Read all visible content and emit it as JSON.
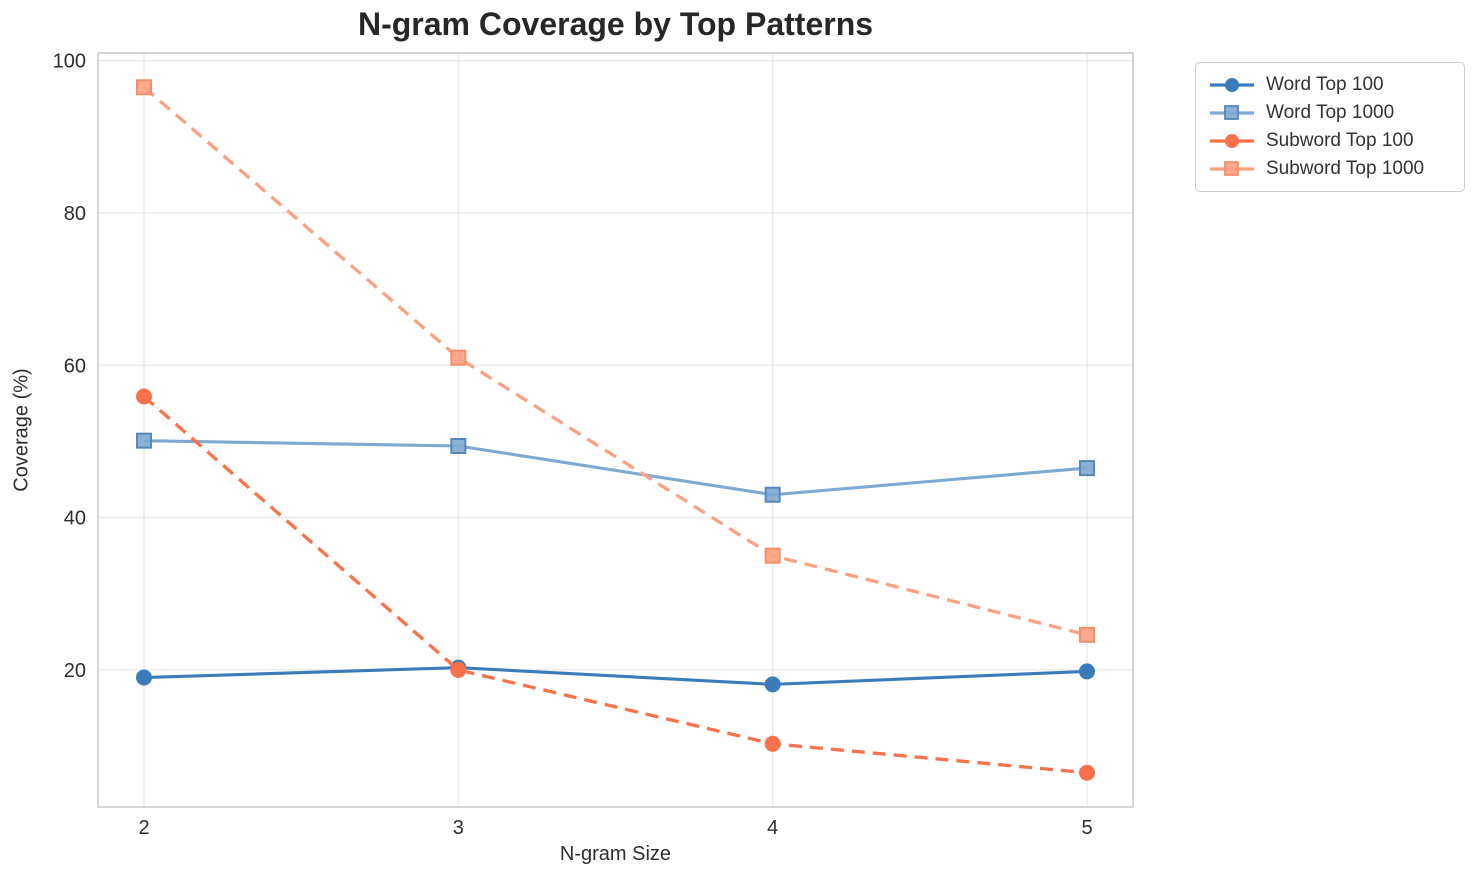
{
  "chart_data": {
    "type": "line",
    "title": "N-gram Coverage by Top Patterns",
    "xlabel": "N-gram Size",
    "ylabel": "Coverage (%)",
    "x": [
      2,
      3,
      4,
      5
    ],
    "xtick_labels": [
      "2",
      "3",
      "4",
      "5"
    ],
    "ytick_values": [
      20,
      40,
      60,
      80,
      100
    ],
    "ytick_labels": [
      "20",
      "40",
      "60",
      "80",
      "100"
    ],
    "ylim": [
      2,
      101
    ],
    "grid": true,
    "legend_position": "outside-upper-right",
    "series": [
      {
        "name": "Word Top 100",
        "values": [
          19.0,
          20.3,
          18.1,
          19.8
        ],
        "color": "#3b7cb8",
        "edge_color": "#34699c",
        "line_style": "solid",
        "marker": "circle"
      },
      {
        "name": "Word Top 1000",
        "values": [
          50.1,
          49.4,
          43.0,
          46.5
        ],
        "color": "#7fa9d1",
        "edge_color": "#5688bc",
        "line_style": "solid",
        "marker": "square"
      },
      {
        "name": "Subword Top 100",
        "values": [
          55.9,
          20.0,
          10.3,
          6.5
        ],
        "color": "#f9714a",
        "edge_color": "#ea5c33",
        "line_style": "dashed",
        "marker": "circle"
      },
      {
        "name": "Subword Top 1000",
        "values": [
          96.5,
          61.0,
          35.0,
          24.6
        ],
        "color": "#fba183",
        "edge_color": "#f88e67",
        "line_style": "dashed",
        "marker": "square"
      }
    ],
    "colors": {
      "background": "#ffffff",
      "grid": "#e8e8ea",
      "spine": "#cbcbcb",
      "tick_text": "#2e2e2e",
      "title_text": "#272727",
      "legend_border": "#cccccc"
    }
  }
}
